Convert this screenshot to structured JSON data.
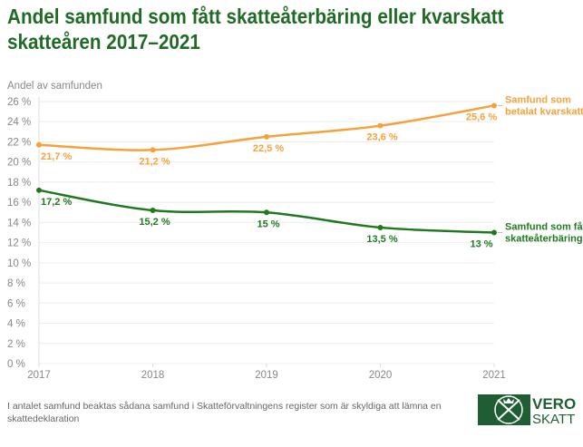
{
  "title": "Andel samfund som fått skatteåterbäring eller kvarskatt skatteåren 2017–2021",
  "footnote": "I antalet samfund beaktas sådana samfund i Skatteförvaltningens register som är skyldiga att lämna en skattedeklaration",
  "logo": {
    "line1": "VERO",
    "line2": "SKATT",
    "color": "#1f5e32"
  },
  "chart_data": {
    "type": "line",
    "title": "Andel samfund som fått skatteåterbäring eller kvarskatt skatteåren 2017–2021",
    "ylabel": "Andel av samfunden",
    "xlabel": "",
    "x": [
      "2017",
      "2018",
      "2019",
      "2020",
      "2021"
    ],
    "ylim": [
      0,
      26
    ],
    "yticks": [
      0,
      2,
      4,
      6,
      8,
      10,
      12,
      14,
      16,
      18,
      20,
      22,
      24,
      26
    ],
    "ytick_suffix": " %",
    "grid": "horizontal",
    "legend": "inline-right",
    "series": [
      {
        "name": "Samfund som betalat kvarskatt",
        "name_lines": [
          "Samfund som",
          "betalat kvarskatt"
        ],
        "color": "#f7a13a",
        "values": [
          21.7,
          21.2,
          22.5,
          23.6,
          25.6
        ],
        "labels": [
          "21,7 %",
          "21,2 %",
          "22,5 %",
          "23,6 %",
          "25,6 %"
        ]
      },
      {
        "name": "Samfund som fåt skatteåterbäring",
        "name_lines": [
          "Samfund som fåt",
          "skatteåterbäring"
        ],
        "color": "#1f7a1f",
        "values": [
          17.2,
          15.2,
          15,
          13.5,
          13
        ],
        "labels": [
          "17,2 %",
          "15,2 %",
          "15 %",
          "13,5 %",
          "13 %"
        ]
      }
    ]
  }
}
